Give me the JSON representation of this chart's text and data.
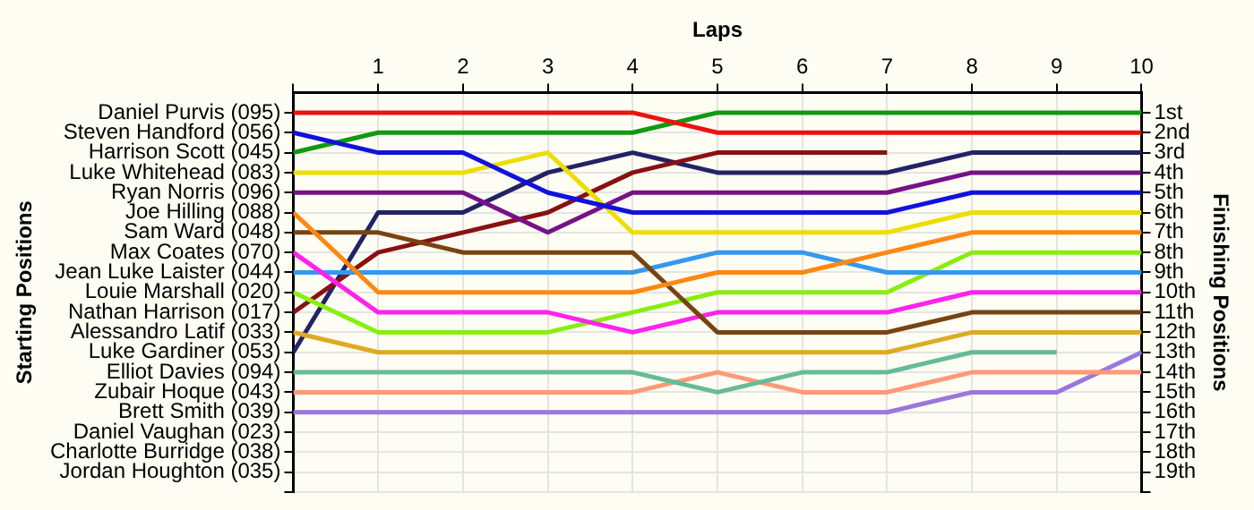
{
  "chart_data": {
    "type": "line",
    "xlabel": "Laps",
    "annotations": [
      "Starting Positions"
    ],
    "y2label": "Finishing Positions",
    "x": [
      0,
      1,
      2,
      3,
      4,
      5,
      6,
      7,
      8,
      9,
      10
    ],
    "xlim": [
      0,
      10
    ],
    "xticks": [
      {
        "value": 0,
        "label": null
      },
      1,
      2,
      3,
      4,
      5,
      6,
      7,
      8,
      9,
      10
    ],
    "y_categories": [
      "Daniel Purvis (095)",
      "Steven Handford (056)",
      "Harrison Scott (045)",
      "Luke Whitehead (083)",
      "Ryan Norris (096)",
      "Joe Hilling (088)",
      "Sam Ward (048)",
      "Max Coates (070)",
      "Jean Luke Laister (044)",
      "Louie Marshall (020)",
      "Nathan Harrison (017)",
      "Alessandro Latif (033)",
      "Luke Gardiner (053)",
      "Elliot Davies (094)",
      "Zubair Hoque (043)",
      "Brett Smith (039)",
      "Daniel Vaughan (023)",
      "Charlotte Burridge (038)",
      "Jordan Houghton (035)",
      null
    ],
    "y2lim": [
      20,
      0
    ],
    "y2ticks": [
      {
        "value": 1,
        "label": "1st"
      },
      {
        "value": 2,
        "label": "2nd"
      },
      {
        "value": 3,
        "label": "3rd"
      },
      {
        "value": 4,
        "label": "4th"
      },
      {
        "value": 5,
        "label": "5th"
      },
      {
        "value": 6,
        "label": "6th"
      },
      {
        "value": 7,
        "label": "7th"
      },
      {
        "value": 8,
        "label": "8th"
      },
      {
        "value": 9,
        "label": "9th"
      },
      {
        "value": 10,
        "label": "10th"
      },
      {
        "value": 11,
        "label": "11th"
      },
      {
        "value": 12,
        "label": "12th"
      },
      {
        "value": 13,
        "label": "13th"
      },
      {
        "value": 14,
        "label": "14th"
      },
      {
        "value": 15,
        "label": "15th"
      },
      {
        "value": 16,
        "label": "16th"
      },
      {
        "value": 17,
        "label": "17th"
      },
      {
        "value": 18,
        "label": "18th"
      },
      {
        "value": 19,
        "label": "19th"
      },
      {
        "value": 20,
        "label": null
      }
    ],
    "grid": true,
    "marker": "none",
    "line_style": "solid",
    "series": [
      {
        "axis": "y2",
        "color": "#ee1111",
        "values": [
          1,
          1,
          1,
          1,
          1,
          2,
          2,
          2,
          2,
          2,
          2
        ]
      },
      {
        "axis": "y2",
        "color": "#1111dd",
        "values": [
          2,
          3,
          3,
          5,
          6,
          6,
          6,
          6,
          5,
          5,
          5
        ]
      },
      {
        "axis": "y2",
        "color": "#119911",
        "values": [
          3,
          2,
          2,
          2,
          2,
          1,
          1,
          1,
          1,
          1,
          1
        ]
      },
      {
        "axis": "y2",
        "color": "#eedd00",
        "values": [
          4,
          4,
          4,
          3,
          7,
          7,
          7,
          7,
          6,
          6,
          6
        ]
      },
      {
        "axis": "y2",
        "color": "#771188",
        "values": [
          5,
          5,
          5,
          7,
          5,
          5,
          5,
          5,
          4,
          4,
          4
        ]
      },
      {
        "axis": "y2",
        "color": "#ff8811",
        "values": [
          6,
          10,
          10,
          10,
          10,
          9,
          9,
          8,
          7,
          7,
          7
        ]
      },
      {
        "axis": "y2",
        "color": "#774411",
        "values": [
          7,
          7,
          8,
          8,
          8,
          12,
          12,
          12,
          11,
          11,
          11
        ]
      },
      {
        "axis": "y2",
        "color": "#ff22ee",
        "values": [
          8,
          11,
          11,
          11,
          12,
          11,
          11,
          11,
          10,
          10,
          10
        ]
      },
      {
        "axis": "y2",
        "color": "#3399ee",
        "values": [
          9,
          9,
          9,
          9,
          9,
          8,
          8,
          9,
          9,
          9,
          9
        ]
      },
      {
        "axis": "y2",
        "color": "#88ee11",
        "values": [
          10,
          12,
          12,
          12,
          11,
          10,
          10,
          10,
          8,
          8,
          8
        ]
      },
      {
        "axis": "y2",
        "color": "#881111",
        "values": [
          11,
          8,
          7,
          6,
          4,
          3,
          3,
          3,
          null,
          null,
          null
        ]
      },
      {
        "axis": "y2",
        "color": "#ddaa22",
        "values": [
          12,
          13,
          13,
          13,
          13,
          13,
          13,
          13,
          12,
          12,
          12
        ]
      },
      {
        "axis": "y2",
        "color": "#222266",
        "values": [
          13,
          6,
          6,
          4,
          3,
          4,
          4,
          4,
          3,
          3,
          3
        ]
      },
      {
        "axis": "y2",
        "color": "#66bb99",
        "values": [
          14,
          14,
          14,
          14,
          14,
          15,
          14,
          14,
          13,
          13,
          null
        ]
      },
      {
        "axis": "y2",
        "color": "#ff9977",
        "values": [
          15,
          15,
          15,
          15,
          15,
          14,
          15,
          15,
          14,
          14,
          14
        ]
      },
      {
        "axis": "y2",
        "color": "#9977dd",
        "values": [
          16,
          16,
          16,
          16,
          16,
          16,
          16,
          16,
          15,
          15,
          13
        ]
      }
    ]
  }
}
